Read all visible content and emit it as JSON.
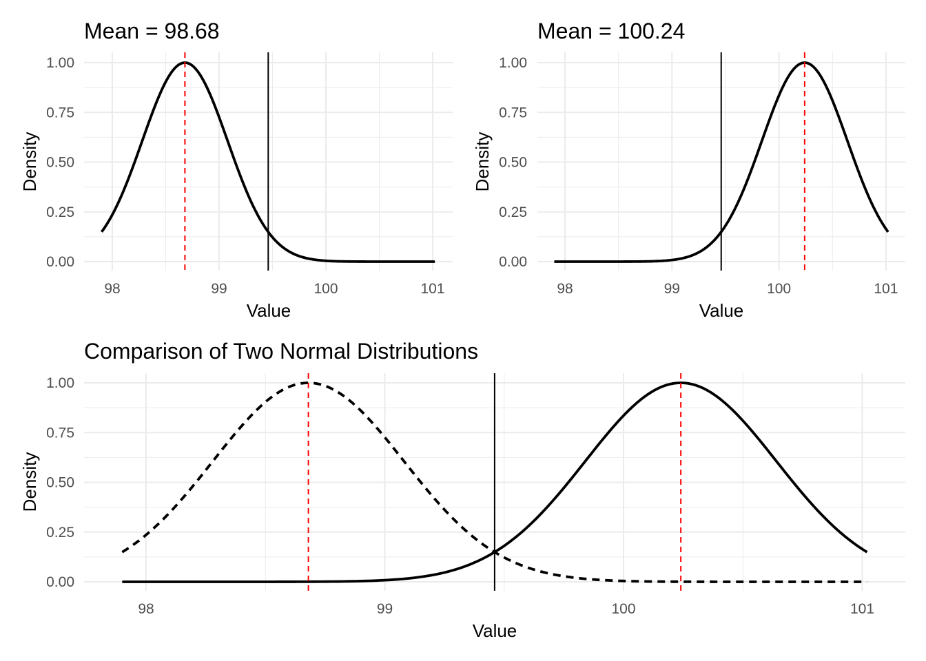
{
  "chart_data": [
    {
      "type": "line",
      "title": "Mean = 98.68",
      "xlabel": "Value",
      "ylabel": "Density",
      "xlim": [
        97.9,
        101.02
      ],
      "ylim": [
        0,
        1
      ],
      "x_ticks": [
        "98",
        "99",
        "100",
        "101"
      ],
      "y_ticks": [
        "0.00",
        "0.25",
        "0.50",
        "0.75",
        "1.00"
      ],
      "grid": true,
      "series": [
        {
          "name": "mean 98.68",
          "mean": 98.68,
          "sd": 0.4,
          "peak": 1.0,
          "style": "solid"
        }
      ],
      "mean_lines": [
        98.68
      ],
      "threshold_line": 99.46,
      "colors": {
        "curve": "#000000",
        "mean_line": "#ff0000",
        "threshold": "#000000",
        "grid": "#ebebeb"
      }
    },
    {
      "type": "line",
      "title": "Mean = 100.24",
      "xlabel": "Value",
      "ylabel": "Density",
      "xlim": [
        97.9,
        101.02
      ],
      "ylim": [
        0,
        1
      ],
      "x_ticks": [
        "98",
        "99",
        "100",
        "101"
      ],
      "y_ticks": [
        "0.00",
        "0.25",
        "0.50",
        "0.75",
        "1.00"
      ],
      "grid": true,
      "series": [
        {
          "name": "mean 100.24",
          "mean": 100.24,
          "sd": 0.4,
          "peak": 1.0,
          "style": "solid"
        }
      ],
      "mean_lines": [
        100.24
      ],
      "threshold_line": 99.46,
      "colors": {
        "curve": "#000000",
        "mean_line": "#ff0000",
        "threshold": "#000000",
        "grid": "#ebebeb"
      }
    },
    {
      "type": "line",
      "title": "Comparison of Two Normal Distributions",
      "xlabel": "Value",
      "ylabel": "Density",
      "xlim": [
        97.9,
        101.02
      ],
      "ylim": [
        0,
        1
      ],
      "x_ticks": [
        "98",
        "99",
        "100",
        "101"
      ],
      "y_ticks": [
        "0.00",
        "0.25",
        "0.50",
        "0.75",
        "1.00"
      ],
      "grid": true,
      "series": [
        {
          "name": "mean 98.68",
          "mean": 98.68,
          "sd": 0.4,
          "peak": 1.0,
          "style": "dashed"
        },
        {
          "name": "mean 100.24",
          "mean": 100.24,
          "sd": 0.4,
          "peak": 1.0,
          "style": "solid"
        }
      ],
      "mean_lines": [
        98.68,
        100.24
      ],
      "threshold_line": 99.46,
      "colors": {
        "curve": "#000000",
        "mean_line": "#ff0000",
        "threshold": "#000000",
        "grid": "#ebebeb"
      }
    }
  ]
}
